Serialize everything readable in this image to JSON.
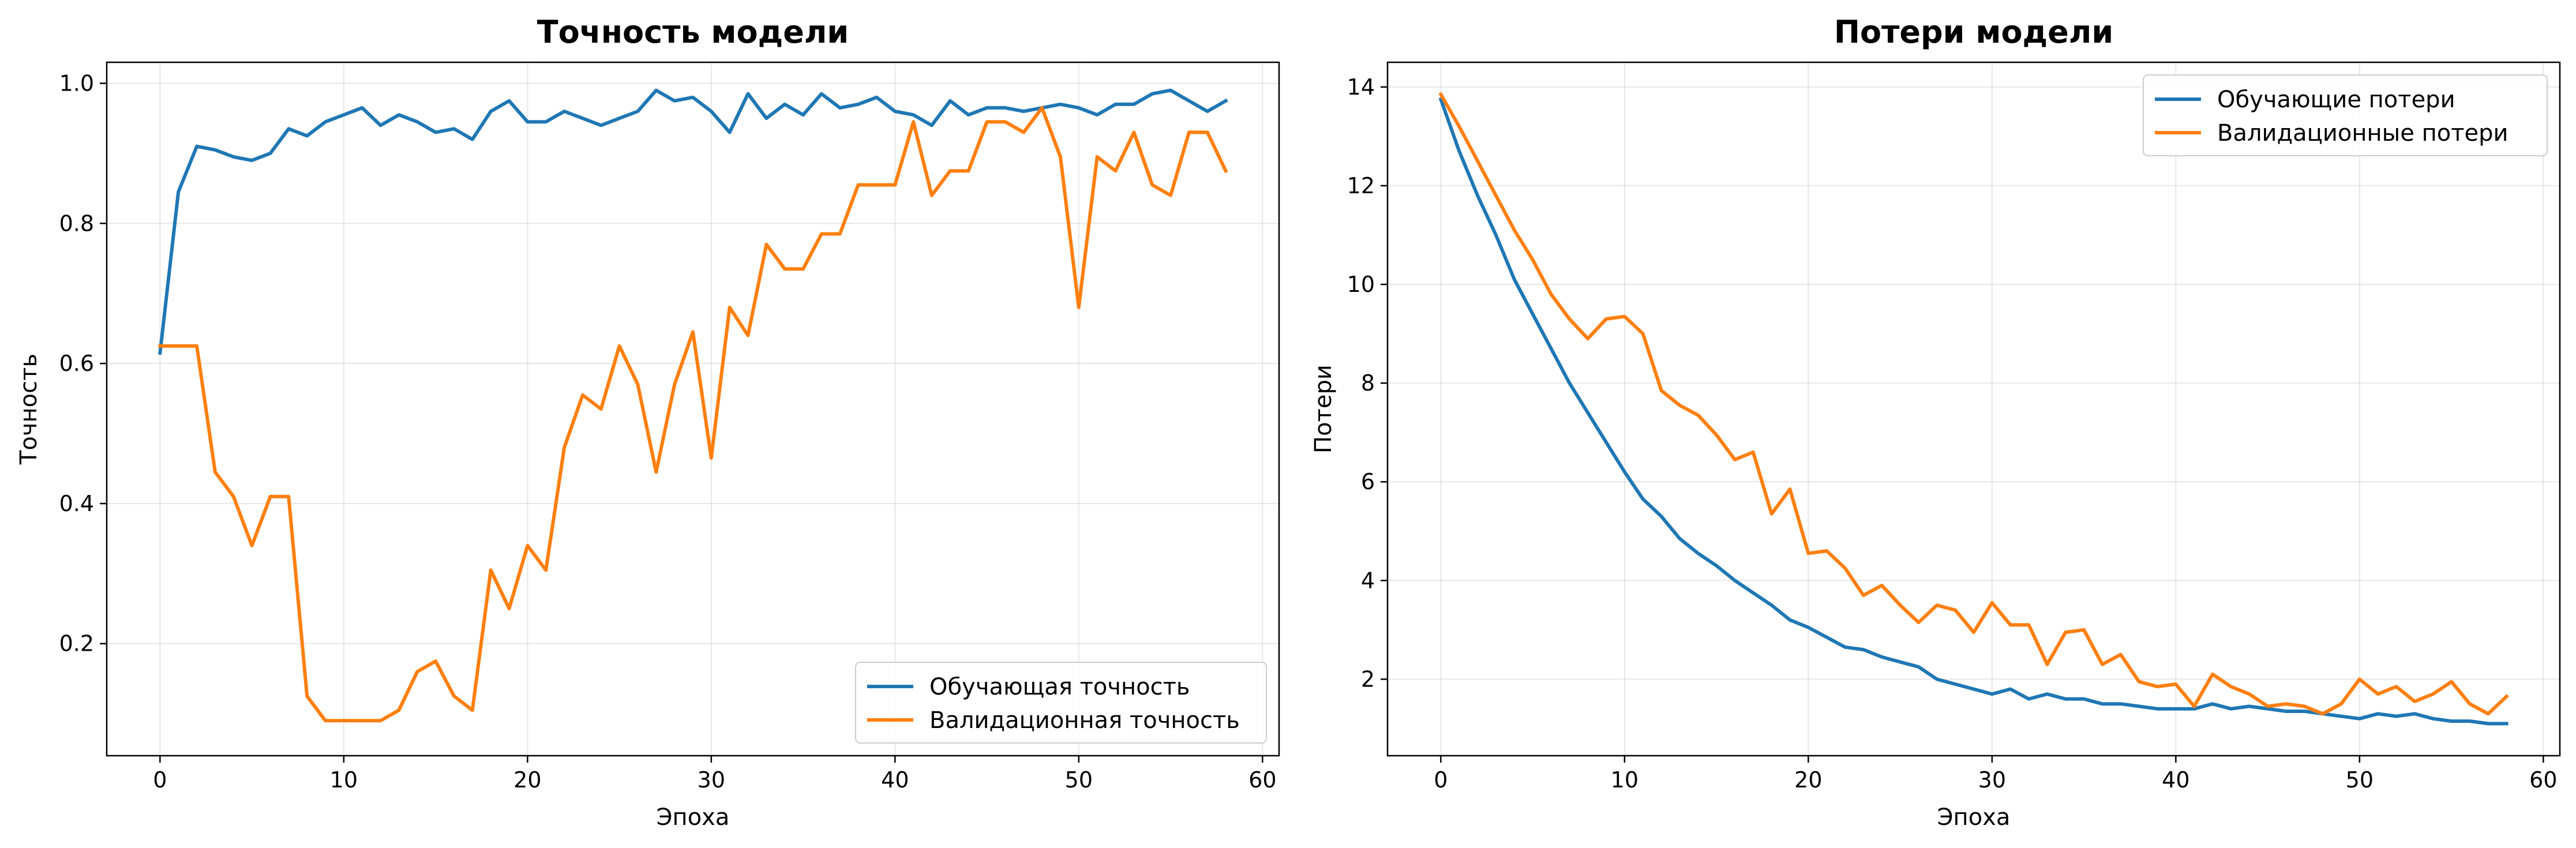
{
  "chart_data": [
    {
      "type": "line",
      "title": "Точность модели",
      "xlabel": "Эпоха",
      "ylabel": "Точность",
      "xlim": [
        -2.9,
        60.9
      ],
      "ylim": [
        0.04,
        1.03
      ],
      "xticks": [
        0,
        10,
        20,
        30,
        40,
        50,
        60
      ],
      "yticks": [
        0.2,
        0.4,
        0.6,
        0.8,
        1.0
      ],
      "xtick_labels": [
        "0",
        "10",
        "20",
        "30",
        "40",
        "50",
        "60"
      ],
      "ytick_labels": [
        "0.2",
        "0.4",
        "0.6",
        "0.8",
        "1.0"
      ],
      "grid": true,
      "legend_position": "lower-right",
      "x": [
        0,
        1,
        2,
        3,
        4,
        5,
        6,
        7,
        8,
        9,
        10,
        11,
        12,
        13,
        14,
        15,
        16,
        17,
        18,
        19,
        20,
        21,
        22,
        23,
        24,
        25,
        26,
        27,
        28,
        29,
        30,
        31,
        32,
        33,
        34,
        35,
        36,
        37,
        38,
        39,
        40,
        41,
        42,
        43,
        44,
        45,
        46,
        47,
        48,
        49,
        50,
        51,
        52,
        53,
        54,
        55,
        56,
        57,
        58
      ],
      "series": [
        {
          "name": "Обучающая точность",
          "color": "#1f77b4",
          "values": [
            0.615,
            0.845,
            0.91,
            0.905,
            0.895,
            0.89,
            0.9,
            0.935,
            0.925,
            0.945,
            0.955,
            0.965,
            0.94,
            0.955,
            0.945,
            0.93,
            0.935,
            0.92,
            0.96,
            0.975,
            0.945,
            0.945,
            0.96,
            0.95,
            0.94,
            0.95,
            0.96,
            0.99,
            0.975,
            0.98,
            0.96,
            0.93,
            0.985,
            0.95,
            0.97,
            0.955,
            0.985,
            0.965,
            0.97,
            0.98,
            0.96,
            0.955,
            0.94,
            0.975,
            0.955,
            0.965,
            0.965,
            0.96,
            0.965,
            0.97,
            0.965,
            0.955,
            0.97,
            0.97,
            0.985,
            0.99,
            0.975,
            0.96,
            0.975
          ]
        },
        {
          "name": "Валидационная точность",
          "color": "#ff7f0e",
          "values": [
            0.625,
            0.625,
            0.625,
            0.445,
            0.41,
            0.34,
            0.41,
            0.41,
            0.125,
            0.09,
            0.09,
            0.09,
            0.09,
            0.105,
            0.16,
            0.175,
            0.125,
            0.105,
            0.305,
            0.25,
            0.34,
            0.305,
            0.48,
            0.555,
            0.535,
            0.625,
            0.57,
            0.445,
            0.57,
            0.645,
            0.465,
            0.68,
            0.64,
            0.77,
            0.735,
            0.735,
            0.785,
            0.785,
            0.855,
            0.855,
            0.855,
            0.945,
            0.84,
            0.875,
            0.875,
            0.945,
            0.945,
            0.93,
            0.965,
            0.895,
            0.68,
            0.895,
            0.875,
            0.93,
            0.855,
            0.84,
            0.93,
            0.93,
            0.875
          ]
        }
      ]
    },
    {
      "type": "line",
      "title": "Потери модели",
      "xlabel": "Эпоха",
      "ylabel": "Потери",
      "xlim": [
        -2.9,
        60.9
      ],
      "ylim": [
        0.45,
        14.5
      ],
      "xticks": [
        0,
        10,
        20,
        30,
        40,
        50,
        60
      ],
      "yticks": [
        2,
        4,
        6,
        8,
        10,
        12,
        14
      ],
      "xtick_labels": [
        "0",
        "10",
        "20",
        "30",
        "40",
        "50",
        "60"
      ],
      "ytick_labels": [
        "2",
        "4",
        "6",
        "8",
        "10",
        "12",
        "14"
      ],
      "grid": true,
      "legend_position": "upper-right",
      "x": [
        0,
        1,
        2,
        3,
        4,
        5,
        6,
        7,
        8,
        9,
        10,
        11,
        12,
        13,
        14,
        15,
        16,
        17,
        18,
        19,
        20,
        21,
        22,
        23,
        24,
        25,
        26,
        27,
        28,
        29,
        30,
        31,
        32,
        33,
        34,
        35,
        36,
        37,
        38,
        39,
        40,
        41,
        42,
        43,
        44,
        45,
        46,
        47,
        48,
        49,
        50,
        51,
        52,
        53,
        54,
        55,
        56,
        57,
        58
      ],
      "series": [
        {
          "name": "Обучающие потери",
          "color": "#1f77b4",
          "values": [
            13.75,
            12.7,
            11.8,
            11.0,
            10.1,
            9.4,
            8.7,
            8.0,
            7.4,
            6.8,
            6.2,
            5.65,
            5.3,
            4.85,
            4.55,
            4.3,
            4.0,
            3.75,
            3.5,
            3.2,
            3.05,
            2.85,
            2.65,
            2.6,
            2.45,
            2.35,
            2.25,
            2.0,
            1.9,
            1.8,
            1.7,
            1.8,
            1.6,
            1.7,
            1.6,
            1.6,
            1.5,
            1.5,
            1.45,
            1.4,
            1.4,
            1.4,
            1.5,
            1.4,
            1.45,
            1.4,
            1.35,
            1.35,
            1.3,
            1.25,
            1.2,
            1.3,
            1.25,
            1.3,
            1.2,
            1.15,
            1.15,
            1.1,
            1.1
          ]
        },
        {
          "name": "Валидационные потери",
          "color": "#ff7f0e",
          "values": [
            13.85,
            13.2,
            12.5,
            11.8,
            11.1,
            10.5,
            9.8,
            9.3,
            8.9,
            9.3,
            9.35,
            9.0,
            7.85,
            7.55,
            7.35,
            6.95,
            6.45,
            6.6,
            5.35,
            5.85,
            4.55,
            4.6,
            4.25,
            3.7,
            3.9,
            3.5,
            3.15,
            3.5,
            3.4,
            2.95,
            3.55,
            3.1,
            3.1,
            2.3,
            2.95,
            3.0,
            2.3,
            2.5,
            1.95,
            1.85,
            1.9,
            1.45,
            2.1,
            1.85,
            1.7,
            1.45,
            1.5,
            1.45,
            1.3,
            1.5,
            2.0,
            1.7,
            1.85,
            1.55,
            1.7,
            1.95,
            1.5,
            1.3,
            1.65
          ]
        }
      ]
    }
  ]
}
